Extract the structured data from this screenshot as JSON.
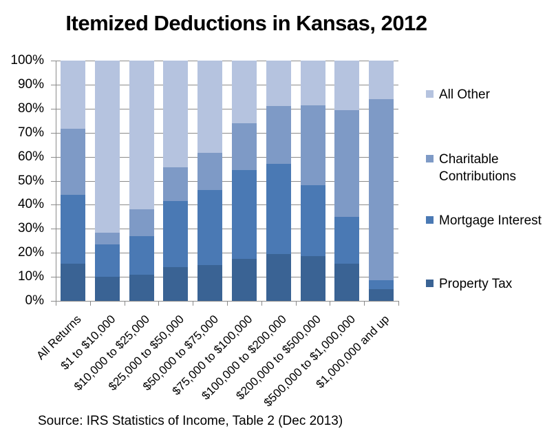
{
  "title": "Itemized Deductions in Kansas, 2012",
  "source_note": "Source: IRS Statistics of Income, Table 2 (Dec 2013)",
  "colors": {
    "property_tax": "#3A6394",
    "mortgage_interest": "#4A79B4",
    "charitable_contributions": "#7E9AC6",
    "all_other": "#B5C3DF",
    "gridline": "#8A8A8A",
    "text": "#000000",
    "background": "#FFFFFF"
  },
  "chart_data": {
    "type": "bar",
    "stacked": true,
    "unit": "percent",
    "title": "Itemized Deductions in Kansas, 2012",
    "categories": [
      "All Returns",
      "$1 to $10,000",
      "$10,000 to $25,000",
      "$25,000 to $50,000",
      "$50,000 to $75,000",
      "$75,000 to $100,000",
      "$100,000 to $200,000",
      "$200,000 to $500,000",
      "$500,000 to $1,000,000",
      "$1,000,000 and up"
    ],
    "series": [
      {
        "name": "Property Tax",
        "color": "#3A6394",
        "values": [
          15.5,
          10,
          11,
          14,
          15,
          17.5,
          19.5,
          18.5,
          15.5,
          5
        ]
      },
      {
        "name": "Mortgage Interest",
        "color": "#4A79B4",
        "values": [
          28.5,
          13.5,
          16,
          27.5,
          31,
          37,
          37.5,
          29.5,
          19.5,
          3.5
        ]
      },
      {
        "name": "Charitable Contributions",
        "color": "#7E9AC6",
        "values": [
          27.5,
          5,
          11,
          14,
          15.5,
          19.5,
          24,
          33.5,
          44.5,
          75.5
        ]
      },
      {
        "name": "All Other",
        "color": "#B5C3DF",
        "values": [
          28.5,
          71.5,
          62,
          44.5,
          38.5,
          26,
          19,
          18.5,
          20.5,
          16
        ]
      }
    ],
    "y_axis": {
      "min": 0,
      "max": 100,
      "tick_step": 10,
      "tick_labels": [
        "0%",
        "10%",
        "20%",
        "30%",
        "40%",
        "50%",
        "60%",
        "70%",
        "80%",
        "90%",
        "100%"
      ]
    },
    "x_axis": {
      "label_rotation_deg": 45
    },
    "grid": true,
    "legend_position": "right",
    "legend_order": [
      "All Other",
      "Charitable Contributions",
      "Mortgage Interest",
      "Property Tax"
    ]
  }
}
